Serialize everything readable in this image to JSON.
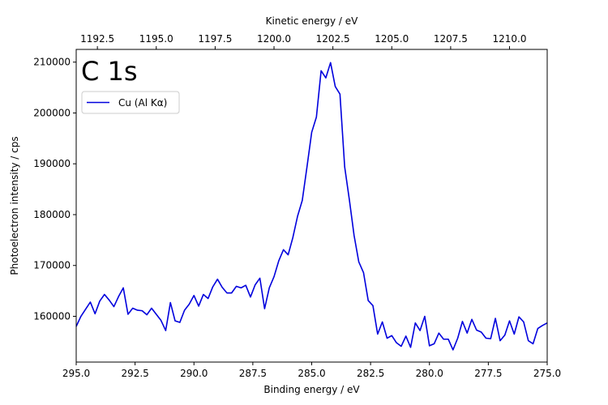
{
  "chart_data": {
    "type": "line",
    "annotation": "C 1s",
    "xlabel": "Binding energy / eV",
    "ylabel": "Photoelectron intensity / cps",
    "top_xlabel": "Kinetic energy / eV",
    "xlim": [
      295.0,
      275.0
    ],
    "ylim": [
      151000,
      212500
    ],
    "x_ticks": [
      "295.0",
      "292.5",
      "290.0",
      "287.5",
      "285.0",
      "282.5",
      "280.0",
      "277.5",
      "275.0"
    ],
    "y_ticks": [
      "160000",
      "170000",
      "180000",
      "190000",
      "200000",
      "210000"
    ],
    "top_ticks": [
      "1192.5",
      "1195.0",
      "1197.5",
      "1200.0",
      "1202.5",
      "1205.0",
      "1207.5",
      "1210.0"
    ],
    "top_tick_to_binding_offset": 1486.6,
    "legend": {
      "entries": [
        "Cu (Al Kα)"
      ],
      "position": "upper-left"
    },
    "grid": false,
    "series": [
      {
        "name": "Cu (Al Kα)",
        "color": "#0000dd",
        "x": [
          295.0,
          294.8,
          294.4,
          294.2,
          294.0,
          293.8,
          293.6,
          293.4,
          293.2,
          293.0,
          292.8,
          292.6,
          292.4,
          292.2,
          292.0,
          291.8,
          291.6,
          291.4,
          291.2,
          291.0,
          290.8,
          290.6,
          290.4,
          290.2,
          290.0,
          289.8,
          289.6,
          289.4,
          289.2,
          289.0,
          288.8,
          288.6,
          288.4,
          288.2,
          288.0,
          287.8,
          287.6,
          287.4,
          287.2,
          287.0,
          286.8,
          286.6,
          286.4,
          286.2,
          286.0,
          285.8,
          285.6,
          285.4,
          285.2,
          285.0,
          284.8,
          284.6,
          284.4,
          284.2,
          284.0,
          283.8,
          283.6,
          283.4,
          283.2,
          283.0,
          282.8,
          282.6,
          282.4,
          282.2,
          282.0,
          281.8,
          281.6,
          281.4,
          281.2,
          281.0,
          280.8,
          280.6,
          280.4,
          280.2,
          280.0,
          279.8,
          279.6,
          279.4,
          279.2,
          279.0,
          278.8,
          278.6,
          278.4,
          278.2,
          278.0,
          277.8,
          277.6,
          277.4,
          277.2,
          277.0,
          276.8,
          276.6,
          276.4,
          276.2,
          276.0,
          275.8,
          275.6,
          275.4,
          275.2,
          275.0
        ],
        "values": [
          158000,
          160000,
          162800,
          160500,
          163000,
          164300,
          163200,
          161900,
          163900,
          165600,
          160400,
          161600,
          161200,
          161100,
          160300,
          161600,
          160400,
          159200,
          157200,
          162700,
          159100,
          158800,
          161200,
          162400,
          164100,
          162000,
          164300,
          163500,
          165800,
          167300,
          165700,
          164600,
          164600,
          165900,
          165600,
          166100,
          163800,
          166200,
          167500,
          161500,
          165600,
          167800,
          170900,
          173100,
          172100,
          175500,
          179700,
          182800,
          189400,
          196200,
          199200,
          208300,
          206900,
          209900,
          205200,
          203700,
          189400,
          182900,
          175900,
          170700,
          168600,
          163100,
          162100,
          156500,
          158900,
          155700,
          156200,
          154800,
          154100,
          156100,
          153900,
          158700,
          157200,
          160000,
          154200,
          154600,
          156700,
          155500,
          155500,
          153400,
          155700,
          159000,
          156700,
          159400,
          157300,
          156900,
          155700,
          155600,
          159600,
          155200,
          156300,
          159100,
          156500,
          159900,
          158900,
          155200,
          154600,
          157600,
          158200,
          158700
        ]
      }
    ]
  }
}
